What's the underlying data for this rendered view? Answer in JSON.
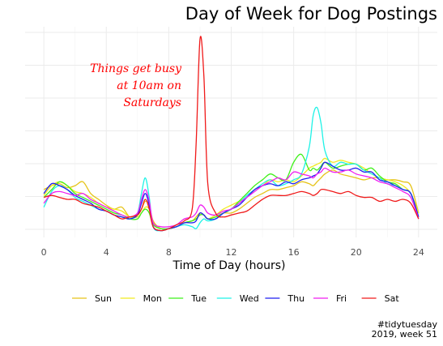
{
  "chart_data": {
    "type": "line",
    "title": "Day of Week for Dog Postings",
    "xlabel": "Time of Day (hours)",
    "ylabel": "",
    "x_ticks": [
      0,
      4,
      8,
      12,
      16,
      20,
      24
    ],
    "xlim": [
      -1.2,
      25.2
    ],
    "ylim": [
      0,
      1
    ],
    "y_ticks_labeled": false,
    "grid": true,
    "legend_position": "bottom",
    "annotation": {
      "lines": [
        "Things get busy",
        "at 10am on",
        "Saturdays"
      ],
      "color": "#ff0000"
    },
    "caption": [
      "#tidytuesday",
      "2019, week 51"
    ],
    "x": [
      0,
      0.5,
      1,
      1.5,
      2,
      2.5,
      3,
      3.5,
      4,
      4.5,
      5,
      5.5,
      6,
      6.25,
      6.5,
      6.75,
      7,
      7.5,
      8,
      8.5,
      9,
      9.5,
      9.75,
      10,
      10.25,
      10.5,
      11,
      11.5,
      12,
      12.5,
      13,
      13.5,
      14,
      14.5,
      15,
      15.5,
      16,
      16.5,
      17,
      17.25,
      17.5,
      17.75,
      18,
      18.5,
      19,
      19.5,
      20,
      20.5,
      21,
      21.5,
      22,
      22.5,
      23,
      23.5,
      24
    ],
    "series": [
      {
        "name": "Sun",
        "color": "#e6c419",
        "values": [
          0.22,
          0.24,
          0.25,
          0.23,
          0.24,
          0.26,
          0.2,
          0.17,
          0.14,
          0.12,
          0.13,
          0.08,
          0.09,
          0.12,
          0.16,
          0.14,
          0.06,
          0.02,
          0.02,
          0.03,
          0.05,
          0.06,
          0.08,
          0.1,
          0.09,
          0.07,
          0.08,
          0.1,
          0.1,
          0.12,
          0.15,
          0.18,
          0.2,
          0.22,
          0.22,
          0.23,
          0.24,
          0.26,
          0.25,
          0.24,
          0.26,
          0.28,
          0.3,
          0.32,
          0.3,
          0.29,
          0.28,
          0.27,
          0.28,
          0.28,
          0.27,
          0.27,
          0.26,
          0.24,
          0.1
        ]
      },
      {
        "name": "Mon",
        "color": "#f0ea1f",
        "values": [
          0.19,
          0.24,
          0.26,
          0.24,
          0.21,
          0.2,
          0.18,
          0.15,
          0.13,
          0.12,
          0.11,
          0.08,
          0.08,
          0.1,
          0.13,
          0.12,
          0.05,
          0.02,
          0.02,
          0.03,
          0.05,
          0.06,
          0.07,
          0.09,
          0.09,
          0.07,
          0.09,
          0.12,
          0.14,
          0.16,
          0.18,
          0.22,
          0.24,
          0.27,
          0.26,
          0.27,
          0.26,
          0.29,
          0.33,
          0.34,
          0.35,
          0.36,
          0.38,
          0.36,
          0.37,
          0.36,
          0.35,
          0.33,
          0.3,
          0.28,
          0.27,
          0.26,
          0.24,
          0.2,
          0.1
        ]
      },
      {
        "name": "Tue",
        "color": "#3ff01a",
        "values": [
          0.18,
          0.22,
          0.26,
          0.24,
          0.2,
          0.18,
          0.16,
          0.14,
          0.12,
          0.1,
          0.09,
          0.07,
          0.07,
          0.1,
          0.12,
          0.1,
          0.04,
          0.02,
          0.02,
          0.03,
          0.05,
          0.06,
          0.07,
          0.09,
          0.09,
          0.07,
          0.08,
          0.1,
          0.12,
          0.16,
          0.2,
          0.24,
          0.27,
          0.3,
          0.28,
          0.27,
          0.36,
          0.4,
          0.32,
          0.33,
          0.32,
          0.34,
          0.36,
          0.33,
          0.34,
          0.35,
          0.35,
          0.32,
          0.33,
          0.29,
          0.26,
          0.25,
          0.22,
          0.2,
          0.08
        ]
      },
      {
        "name": "Wed",
        "color": "#1ef2e6",
        "values": [
          0.13,
          0.21,
          0.24,
          0.22,
          0.18,
          0.16,
          0.14,
          0.12,
          0.11,
          0.09,
          0.08,
          0.07,
          0.1,
          0.2,
          0.28,
          0.18,
          0.03,
          0.01,
          0.02,
          0.03,
          0.04,
          0.03,
          0.02,
          0.05,
          0.07,
          0.06,
          0.07,
          0.1,
          0.12,
          0.15,
          0.19,
          0.22,
          0.25,
          0.27,
          0.24,
          0.25,
          0.27,
          0.3,
          0.44,
          0.6,
          0.64,
          0.56,
          0.42,
          0.34,
          0.36,
          0.35,
          0.35,
          0.32,
          0.3,
          0.28,
          0.25,
          0.24,
          0.22,
          0.2,
          0.08
        ]
      },
      {
        "name": "Thu",
        "color": "#1f1ff0",
        "values": [
          0.2,
          0.25,
          0.24,
          0.22,
          0.19,
          0.17,
          0.15,
          0.12,
          0.11,
          0.09,
          0.08,
          0.07,
          0.09,
          0.15,
          0.2,
          0.14,
          0.03,
          0.01,
          0.02,
          0.03,
          0.05,
          0.05,
          0.06,
          0.1,
          0.09,
          0.07,
          0.07,
          0.1,
          0.12,
          0.14,
          0.18,
          0.22,
          0.24,
          0.25,
          0.24,
          0.26,
          0.25,
          0.27,
          0.28,
          0.29,
          0.3,
          0.33,
          0.36,
          0.34,
          0.32,
          0.32,
          0.33,
          0.31,
          0.31,
          0.27,
          0.26,
          0.24,
          0.22,
          0.2,
          0.08
        ]
      },
      {
        "name": "Fri",
        "color": "#f01ef0",
        "values": [
          0.15,
          0.2,
          0.21,
          0.2,
          0.19,
          0.2,
          0.17,
          0.15,
          0.13,
          0.11,
          0.09,
          0.08,
          0.1,
          0.17,
          0.22,
          0.16,
          0.05,
          0.03,
          0.03,
          0.04,
          0.07,
          0.08,
          0.1,
          0.14,
          0.13,
          0.1,
          0.09,
          0.11,
          0.12,
          0.15,
          0.18,
          0.21,
          0.24,
          0.26,
          0.28,
          0.27,
          0.31,
          0.3,
          0.29,
          0.28,
          0.3,
          0.31,
          0.33,
          0.31,
          0.31,
          0.32,
          0.3,
          0.29,
          0.28,
          0.26,
          0.25,
          0.23,
          0.21,
          0.18,
          0.07
        ]
      },
      {
        "name": "Sat",
        "color": "#f01a1a",
        "values": [
          0.18,
          0.19,
          0.18,
          0.17,
          0.17,
          0.15,
          0.14,
          0.13,
          0.11,
          0.09,
          0.07,
          0.08,
          0.09,
          0.12,
          0.17,
          0.12,
          0.03,
          0.01,
          0.02,
          0.04,
          0.06,
          0.12,
          0.45,
          0.99,
          0.8,
          0.25,
          0.1,
          0.08,
          0.09,
          0.1,
          0.11,
          0.14,
          0.17,
          0.19,
          0.19,
          0.19,
          0.2,
          0.21,
          0.2,
          0.19,
          0.2,
          0.22,
          0.22,
          0.21,
          0.2,
          0.21,
          0.19,
          0.18,
          0.18,
          0.16,
          0.17,
          0.16,
          0.17,
          0.15,
          0.07
        ]
      }
    ]
  }
}
